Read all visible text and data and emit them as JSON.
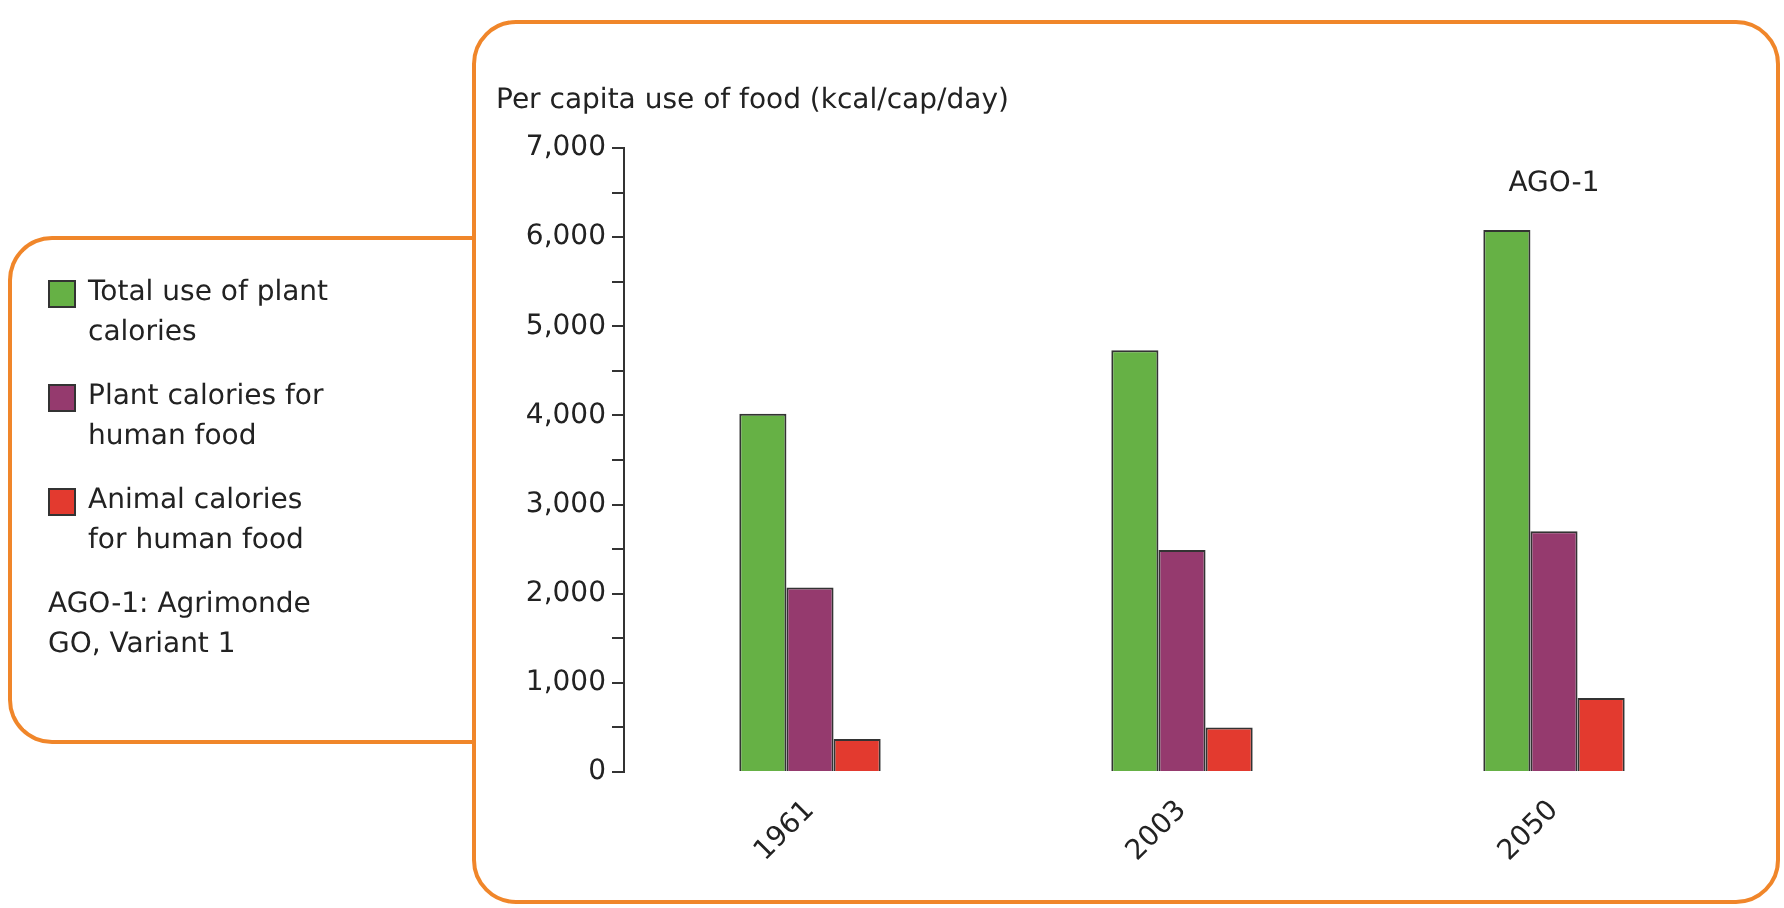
{
  "chart_data": {
    "type": "bar",
    "ylabel": "Per capita use of food (kcal/cap/day)",
    "categories": [
      "1961",
      "2003",
      "2050"
    ],
    "series": [
      {
        "name": "Total use of plant calories",
        "color": "#66b145",
        "values": [
          4020,
          4730,
          6080
        ]
      },
      {
        "name": "Plant calories for human food",
        "color": "#953a6e",
        "values": [
          2070,
          2490,
          2700
        ]
      },
      {
        "name": "Animal calories for human food",
        "color": "#e33a2f",
        "values": [
          370,
          500,
          830
        ]
      }
    ],
    "ylim": [
      0,
      7000
    ],
    "yticks": [
      0,
      {
        "value": 500,
        "label": null
      },
      {
        "value": 1000,
        "label": "1,000"
      },
      {
        "value": 1500,
        "label": null
      },
      {
        "value": 2000,
        "label": "2,000"
      },
      {
        "value": 2500,
        "label": null
      },
      {
        "value": 3000,
        "label": "3,000"
      },
      {
        "value": 3500,
        "label": null
      },
      {
        "value": 4000,
        "label": "4,000"
      },
      {
        "value": 4500,
        "label": null
      },
      {
        "value": 5000,
        "label": "5,000"
      },
      {
        "value": 5500,
        "label": null
      },
      {
        "value": 6000,
        "label": "6,000"
      },
      {
        "value": 6500,
        "label": null
      },
      {
        "value": 7000,
        "label": "7,000"
      }
    ],
    "legend": "left",
    "annotations": [
      "AGO-1",
      "AGO-1: Agrimonde GO, Variant 1"
    ]
  }
}
